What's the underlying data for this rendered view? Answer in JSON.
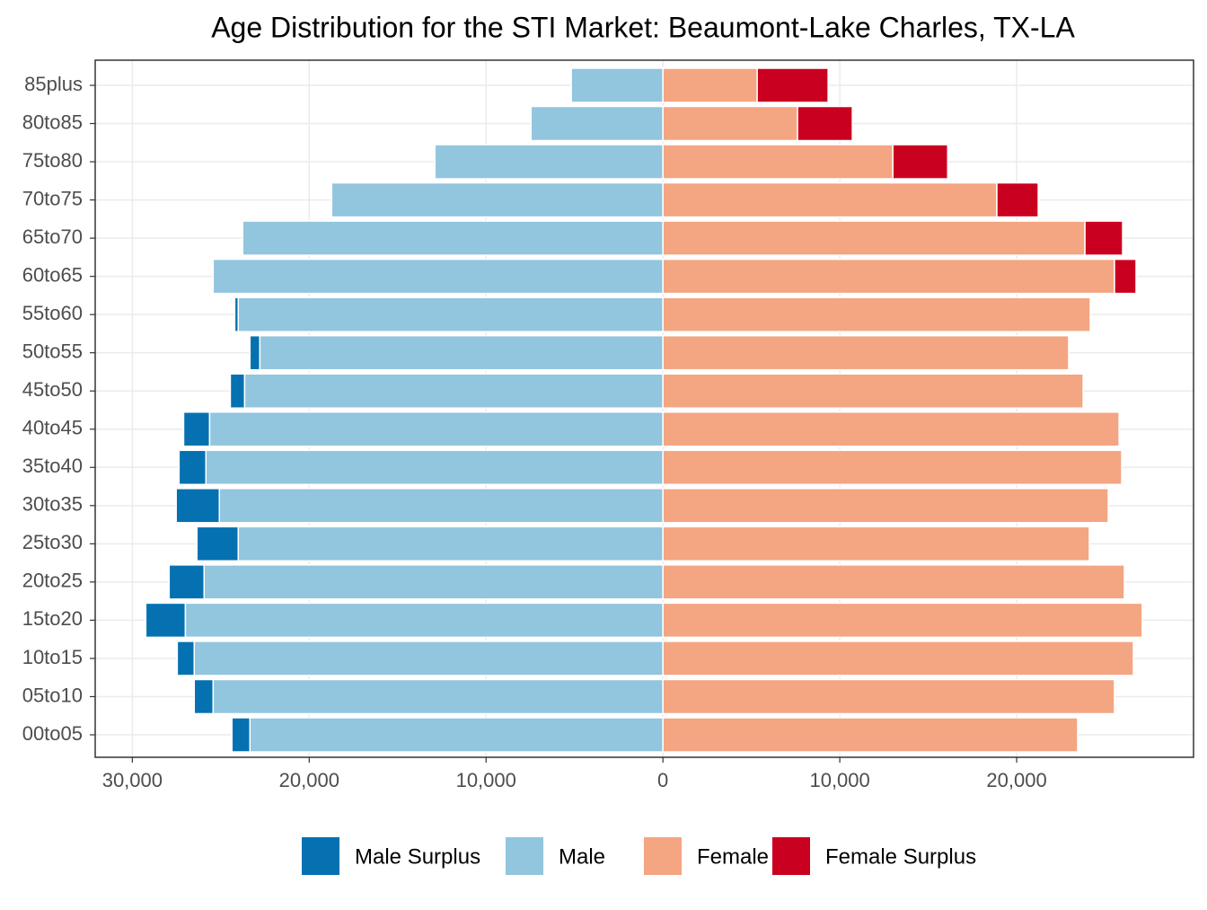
{
  "chart_data": {
    "type": "pyramid",
    "title": "Age Distribution for the STI Market: Beaumont-Lake Charles, TX-LA",
    "categories": [
      "00to05",
      "05to10",
      "10to15",
      "15to20",
      "20to25",
      "25to30",
      "30to35",
      "35to40",
      "40to45",
      "45to50",
      "50to55",
      "55to60",
      "60to65",
      "65to70",
      "70to75",
      "75to80",
      "80to85",
      "85plus"
    ],
    "series": [
      {
        "name": "Male Surplus",
        "color": "#0571b0",
        "stack_on": "Male",
        "values": [
          -1020,
          -1070,
          -960,
          -2240,
          -1980,
          -2340,
          -2440,
          -1520,
          -1470,
          -810,
          -560,
          -200,
          0,
          0,
          0,
          0,
          0,
          0
        ]
      },
      {
        "name": "Male",
        "color": "#92c5de",
        "values": [
          -23350,
          -25430,
          -26500,
          -27000,
          -25940,
          -24010,
          -25080,
          -25840,
          -25630,
          -23650,
          -22790,
          -24010,
          -25430,
          -23760,
          -18730,
          -12890,
          -7460,
          -5180
        ]
      },
      {
        "name": "Female",
        "color": "#f4a582",
        "values": [
          23450,
          25530,
          26600,
          27100,
          26090,
          24110,
          25180,
          25940,
          25790,
          23760,
          22940,
          24160,
          25530,
          23860,
          18880,
          13000,
          7610,
          5330
        ]
      },
      {
        "name": "Female Surplus",
        "color": "#ca0020",
        "stack_on": "Female",
        "values": [
          0,
          0,
          0,
          0,
          0,
          0,
          0,
          0,
          0,
          0,
          0,
          0,
          1220,
          2130,
          2340,
          3100,
          3100,
          4010
        ]
      }
    ],
    "xlim": [
      -32100,
      30000
    ],
    "xticks": [
      {
        "value": -30000,
        "label": "30,000"
      },
      {
        "value": -20000,
        "label": "20,000"
      },
      {
        "value": -10000,
        "label": "10,000"
      },
      0,
      {
        "value": 10000,
        "label": "10,000"
      },
      {
        "value": 20000,
        "label": "20,000"
      }
    ],
    "grid": true,
    "legend": "bottom"
  }
}
